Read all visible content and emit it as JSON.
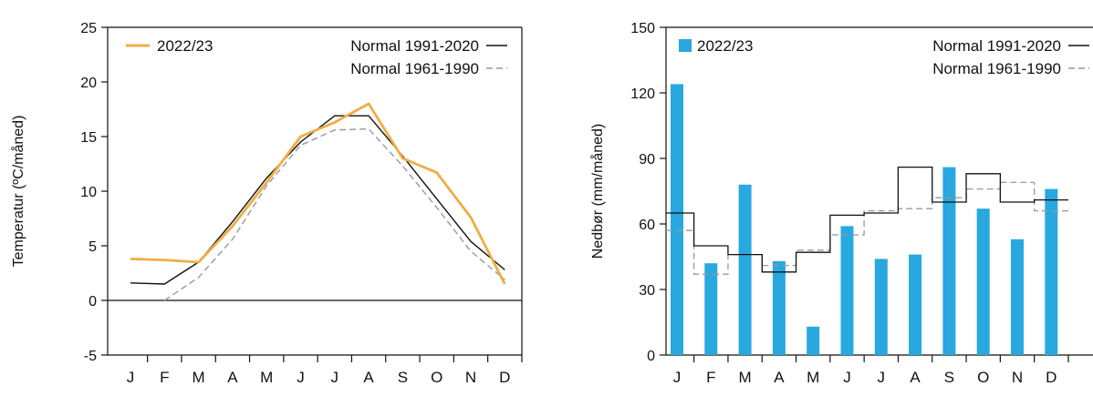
{
  "chart_data": [
    {
      "type": "line",
      "title": "",
      "xlabel": "",
      "ylabel": "Temperatur (ºC/måned)",
      "categories": [
        "J",
        "F",
        "M",
        "A",
        "M",
        "J",
        "J",
        "A",
        "S",
        "O",
        "N",
        "D"
      ],
      "ylim": [
        -5,
        25
      ],
      "yticks": [
        -5,
        0,
        5,
        10,
        15,
        20,
        25
      ],
      "zero_line": true,
      "legend_position": "top",
      "series": [
        {
          "name": "2022/23",
          "color": "#f0ad45",
          "style": "solid",
          "values": [
            3.8,
            3.7,
            3.5,
            6.8,
            10.8,
            15.0,
            16.3,
            18.0,
            13.0,
            11.7,
            7.6,
            1.5
          ]
        },
        {
          "name": "Normal 1991-2020",
          "color": "#111111",
          "style": "solid",
          "values": [
            1.6,
            1.5,
            3.5,
            7.2,
            11.2,
            14.5,
            16.9,
            16.9,
            13.2,
            9.3,
            5.4,
            2.8
          ]
        },
        {
          "name": "Normal 1961-1990",
          "color": "#999999",
          "style": "dashed",
          "values": [
            null,
            0.0,
            2.1,
            5.6,
            10.5,
            14.2,
            15.6,
            15.7,
            12.3,
            8.5,
            4.5,
            1.9
          ]
        }
      ]
    },
    {
      "type": "bar",
      "title": "",
      "xlabel": "",
      "ylabel": "Nedbør (mm/måned)",
      "categories": [
        "J",
        "F",
        "M",
        "A",
        "M",
        "J",
        "J",
        "A",
        "S",
        "O",
        "N",
        "D"
      ],
      "ylim": [
        0,
        150
      ],
      "yticks": [
        0,
        30,
        60,
        90,
        120,
        150
      ],
      "legend_position": "top",
      "series": [
        {
          "name": "2022/23",
          "color": "#29a8df",
          "style": "bar",
          "values": [
            124,
            42,
            78,
            43,
            13,
            59,
            44,
            46,
            86,
            67,
            53,
            76
          ]
        },
        {
          "name": "Normal 1991-2020",
          "color": "#111111",
          "style": "step",
          "values": [
            65,
            50,
            46,
            38,
            47,
            64,
            65,
            86,
            70,
            83,
            70,
            71
          ]
        },
        {
          "name": "Normal 1961-1990",
          "color": "#999999",
          "style": "dashed-step",
          "values": [
            57,
            37,
            46,
            41,
            48,
            55,
            66,
            67,
            72,
            76,
            79,
            66
          ]
        }
      ]
    }
  ]
}
